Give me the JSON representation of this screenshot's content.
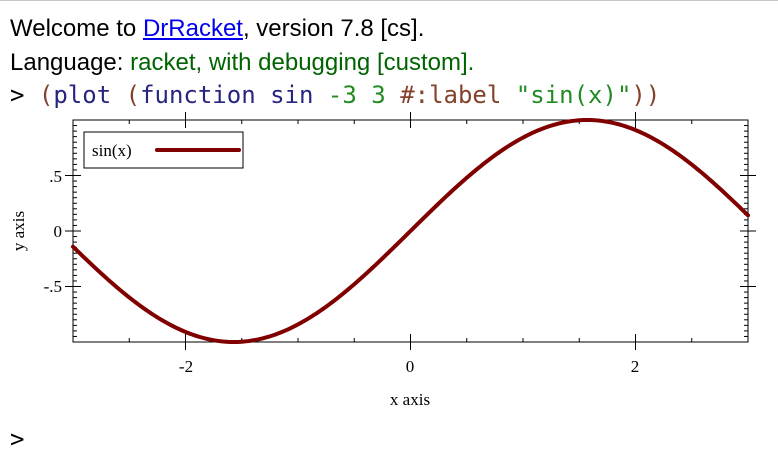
{
  "repl": {
    "welcome_prefix": "Welcome to ",
    "welcome_link": "DrRacket",
    "welcome_suffix": ", version 7.8 [cs].",
    "language_label": "Language: ",
    "language_value": "racket, with debugging [custom].",
    "prompt": ">",
    "expr": {
      "open1": "(",
      "plot": "plot",
      "open2": "(",
      "function": "function",
      "sin": "sin",
      "lo": "-3",
      "hi": "3",
      "label_kw": "#:label",
      "label_str": "\"sin(x)\"",
      "close": "))"
    },
    "next_prompt": ">"
  },
  "colors": {
    "curve": "#800000",
    "link": "#0000ee",
    "paren": "#84412b",
    "identifier": "#262680",
    "literal": "#228b22",
    "language": "#006400"
  },
  "chart_data": {
    "type": "line",
    "function": "sin",
    "xlim": [
      -3,
      3
    ],
    "ylim": [
      -1,
      1
    ],
    "x_ticks": [
      -2,
      0,
      2
    ],
    "x_tick_labels": [
      "-2",
      "0",
      "2"
    ],
    "y_ticks": [
      -0.5,
      0,
      0.5
    ],
    "y_tick_labels": [
      "-.5",
      "0",
      ".5"
    ],
    "xlabel": "x axis",
    "ylabel": "y axis",
    "legend_placement": "top-left",
    "series": [
      {
        "name": "sin(x)",
        "color": "#800000"
      }
    ]
  }
}
